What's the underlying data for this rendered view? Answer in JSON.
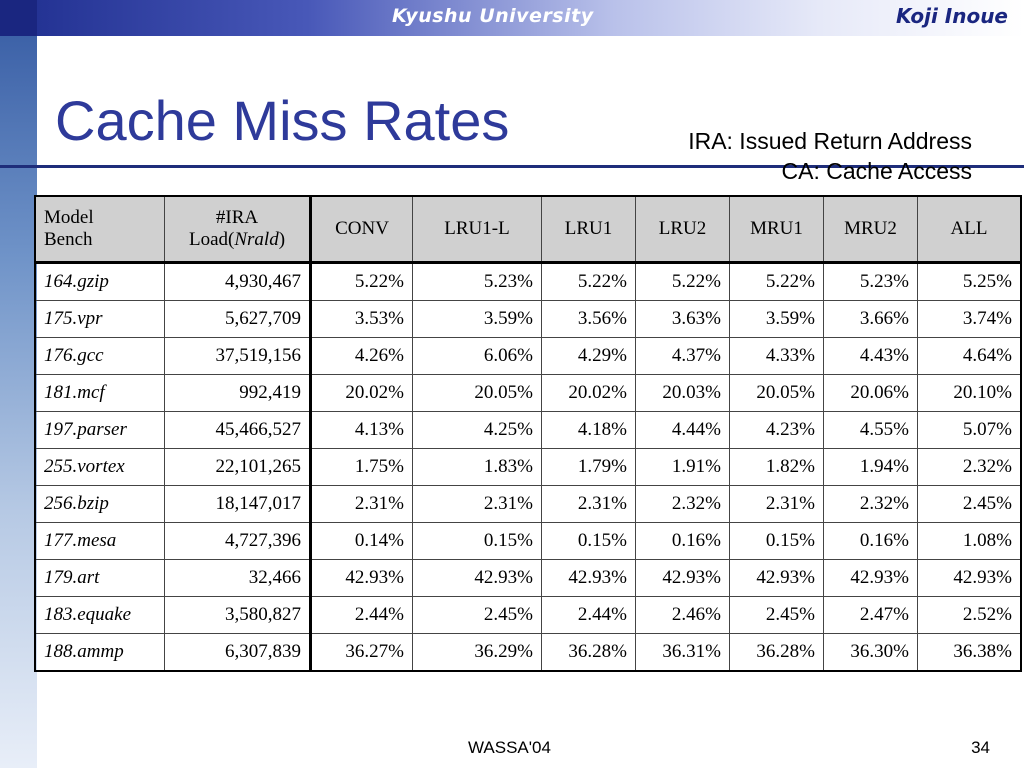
{
  "header": {
    "university": "Kyushu University",
    "author": "Koji Inoue"
  },
  "slide": {
    "title": "Cache Miss Rates",
    "notes": [
      "IRA: Issued Return Address",
      "CA: Cache Access"
    ]
  },
  "table": {
    "header": {
      "bench_line1": "Model",
      "bench_line2": "Bench",
      "ira_line1": "#IRA",
      "ira_line2_prefix": "Load(",
      "ira_line2_italic": "Nrald",
      "ira_line2_suffix": ")",
      "cols": [
        "CONV",
        "LRU1-L",
        "LRU1",
        "LRU2",
        "MRU1",
        "MRU2",
        "ALL"
      ]
    },
    "rows": [
      [
        "164.gzip",
        "4,930,467",
        "5.22%",
        "5.23%",
        "5.22%",
        "5.22%",
        "5.22%",
        "5.23%",
        "5.25%"
      ],
      [
        "175.vpr",
        "5,627,709",
        "3.53%",
        "3.59%",
        "3.56%",
        "3.63%",
        "3.59%",
        "3.66%",
        "3.74%"
      ],
      [
        "176.gcc",
        "37,519,156",
        "4.26%",
        "6.06%",
        "4.29%",
        "4.37%",
        "4.33%",
        "4.43%",
        "4.64%"
      ],
      [
        "181.mcf",
        "992,419",
        "20.02%",
        "20.05%",
        "20.02%",
        "20.03%",
        "20.05%",
        "20.06%",
        "20.10%"
      ],
      [
        "197.parser",
        "45,466,527",
        "4.13%",
        "4.25%",
        "4.18%",
        "4.44%",
        "4.23%",
        "4.55%",
        "5.07%"
      ],
      [
        "255.vortex",
        "22,101,265",
        "1.75%",
        "1.83%",
        "1.79%",
        "1.91%",
        "1.82%",
        "1.94%",
        "2.32%"
      ],
      [
        "256.bzip",
        "18,147,017",
        "2.31%",
        "2.31%",
        "2.31%",
        "2.32%",
        "2.31%",
        "2.32%",
        "2.45%"
      ],
      [
        "177.mesa",
        "4,727,396",
        "0.14%",
        "0.15%",
        "0.15%",
        "0.16%",
        "0.15%",
        "0.16%",
        "1.08%"
      ],
      [
        "179.art",
        "32,466",
        "42.93%",
        "42.93%",
        "42.93%",
        "42.93%",
        "42.93%",
        "42.93%",
        "42.93%"
      ],
      [
        "183.equake",
        "3,580,827",
        "2.44%",
        "2.45%",
        "2.44%",
        "2.46%",
        "2.45%",
        "2.47%",
        "2.52%"
      ],
      [
        "188.ammp",
        "6,307,839",
        "36.27%",
        "36.29%",
        "36.28%",
        "36.31%",
        "36.28%",
        "36.30%",
        "36.38%"
      ]
    ]
  },
  "footer": {
    "center": "WASSA'04",
    "page": "34"
  }
}
